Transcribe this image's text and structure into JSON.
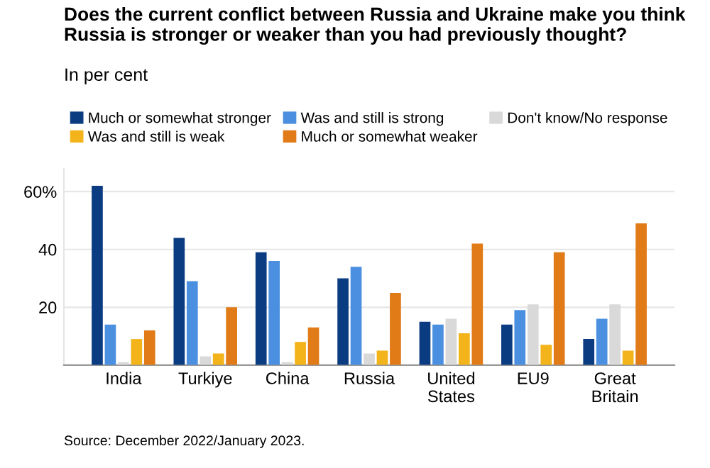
{
  "chart_data": {
    "type": "bar",
    "title": "Does the current conflict between Russia and Ukraine make you think Russia is stronger or weaker than you had previously thought?",
    "subtitle": "In per cent",
    "categories": [
      "India",
      "Turkiye",
      "China",
      "Russia",
      "United\nStates",
      "EU9",
      "Great\nBritain"
    ],
    "series": [
      {
        "name": "Much or somewhat stronger",
        "color": "#0b3c82",
        "values": [
          62,
          44,
          39,
          30,
          15,
          14,
          9
        ]
      },
      {
        "name": "Was and still is strong",
        "color": "#4a8fe0",
        "values": [
          14,
          29,
          36,
          34,
          14,
          19,
          16
        ]
      },
      {
        "name": "Don't know/No response",
        "color": "#d9d9d9",
        "values": [
          1,
          3,
          1,
          4,
          16,
          21,
          21
        ]
      },
      {
        "name": "Was and still is weak",
        "color": "#f2b31b",
        "values": [
          9,
          4,
          8,
          5,
          11,
          7,
          5
        ]
      },
      {
        "name": "Much or somewhat weaker",
        "color": "#e07b18",
        "values": [
          12,
          20,
          13,
          25,
          42,
          39,
          49
        ]
      }
    ],
    "ylim": [
      0,
      68
    ],
    "yticks": [
      20,
      40,
      {
        "value": 60,
        "label": "60%"
      }
    ],
    "grid": "y",
    "legend": "top left",
    "annotations": [
      "Source: December 2022/January 2023."
    ]
  }
}
